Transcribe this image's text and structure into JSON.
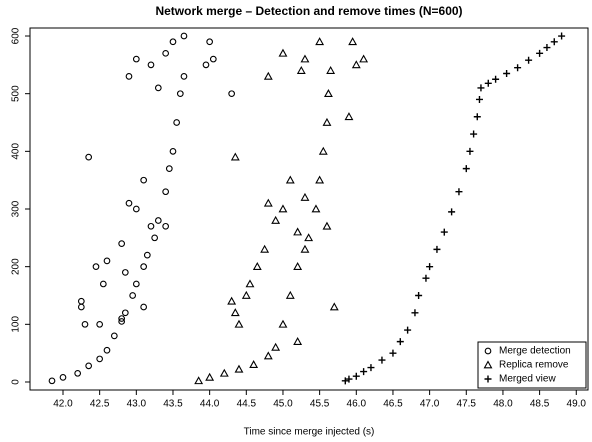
{
  "chart_data": {
    "type": "scatter",
    "title": "Network merge – Detection and remove times (N=600)",
    "x_label": "Time since merge injected (s)",
    "xlim": [
      41.55,
      49.16
    ],
    "ylim": [
      -13.9,
      613.9
    ],
    "xticks": [
      {
        "value": 42,
        "label": "42.0"
      },
      42.5,
      {
        "value": 43,
        "label": "43.0"
      },
      43.5,
      {
        "value": 44,
        "label": "44.0"
      },
      44.5,
      {
        "value": 45,
        "label": "45.0"
      },
      45.5,
      {
        "value": 46,
        "label": "46.0"
      },
      46.5,
      {
        "value": 47,
        "label": "47.0"
      },
      47.5,
      {
        "value": 48,
        "label": "48.0"
      },
      48.5,
      {
        "value": 49,
        "label": "49.0"
      }
    ],
    "yticks": [
      0,
      100,
      200,
      300,
      400,
      500,
      600
    ],
    "legend": "bottom right",
    "series": [
      {
        "name": "Merge detection",
        "marker": "circle",
        "color": "#000000",
        "x": [
          41.85,
          42.0,
          42.2,
          42.35,
          42.5,
          42.6,
          42.7,
          42.8,
          42.85,
          42.95,
          43.0,
          43.1,
          43.15,
          43.25,
          43.3,
          43.4,
          43.45,
          43.5,
          43.55,
          43.6,
          43.65,
          42.35,
          42.25,
          42.25,
          42.3,
          42.45,
          42.55,
          42.6,
          42.8,
          42.85,
          42.9,
          43.0,
          43.1,
          43.2,
          43.4,
          43.1,
          42.8,
          43.3,
          42.9,
          43.0,
          43.2,
          43.4,
          43.5,
          43.65,
          44.0,
          43.95,
          44.05,
          44.3,
          42.5
        ],
        "values": [
          2,
          8,
          15,
          28,
          40,
          55,
          80,
          105,
          120,
          150,
          170,
          200,
          220,
          250,
          280,
          330,
          370,
          400,
          450,
          500,
          530,
          390,
          130,
          140,
          100,
          200,
          170,
          210,
          240,
          190,
          310,
          300,
          350,
          270,
          270,
          130,
          110,
          510,
          530,
          560,
          550,
          570,
          590,
          600,
          590,
          550,
          560,
          500,
          100
        ]
      },
      {
        "name": "Replica remove",
        "marker": "triangle",
        "color": "#000000",
        "x": [
          43.85,
          44.0,
          44.2,
          44.4,
          44.6,
          44.8,
          44.9,
          45.0,
          45.1,
          45.2,
          45.3,
          45.35,
          45.45,
          45.5,
          45.55,
          45.6,
          45.62,
          45.65,
          44.35,
          44.3,
          44.35,
          44.4,
          44.5,
          44.65,
          44.75,
          44.8,
          44.9,
          45.0,
          45.1,
          45.2,
          45.3,
          45.6,
          45.7,
          45.2,
          45.9,
          44.8,
          45.0,
          45.3,
          45.5,
          46.1,
          45.95,
          46.0,
          45.25,
          44.55
        ],
        "values": [
          2,
          8,
          15,
          22,
          30,
          45,
          60,
          100,
          150,
          200,
          230,
          250,
          300,
          350,
          400,
          450,
          500,
          540,
          390,
          140,
          120,
          100,
          150,
          200,
          230,
          310,
          280,
          300,
          350,
          260,
          320,
          270,
          130,
          70,
          460,
          530,
          570,
          560,
          590,
          560,
          590,
          550,
          540,
          170
        ]
      },
      {
        "name": "Merged view",
        "marker": "plus",
        "color": "#000000",
        "x": [
          45.85,
          45.9,
          46.0,
          46.1,
          46.2,
          46.35,
          46.5,
          46.6,
          46.7,
          46.8,
          46.85,
          46.95,
          47.0,
          47.1,
          47.2,
          47.3,
          47.4,
          47.5,
          47.55,
          47.6,
          47.65,
          47.68,
          47.7,
          47.8,
          47.9,
          48.05,
          48.2,
          48.35,
          48.5,
          48.6,
          48.7,
          48.8
        ],
        "values": [
          2,
          5,
          10,
          18,
          25,
          38,
          50,
          70,
          90,
          120,
          150,
          180,
          200,
          230,
          260,
          295,
          330,
          370,
          400,
          430,
          460,
          490,
          510,
          518,
          525,
          535,
          545,
          558,
          570,
          580,
          590,
          600
        ]
      }
    ]
  }
}
